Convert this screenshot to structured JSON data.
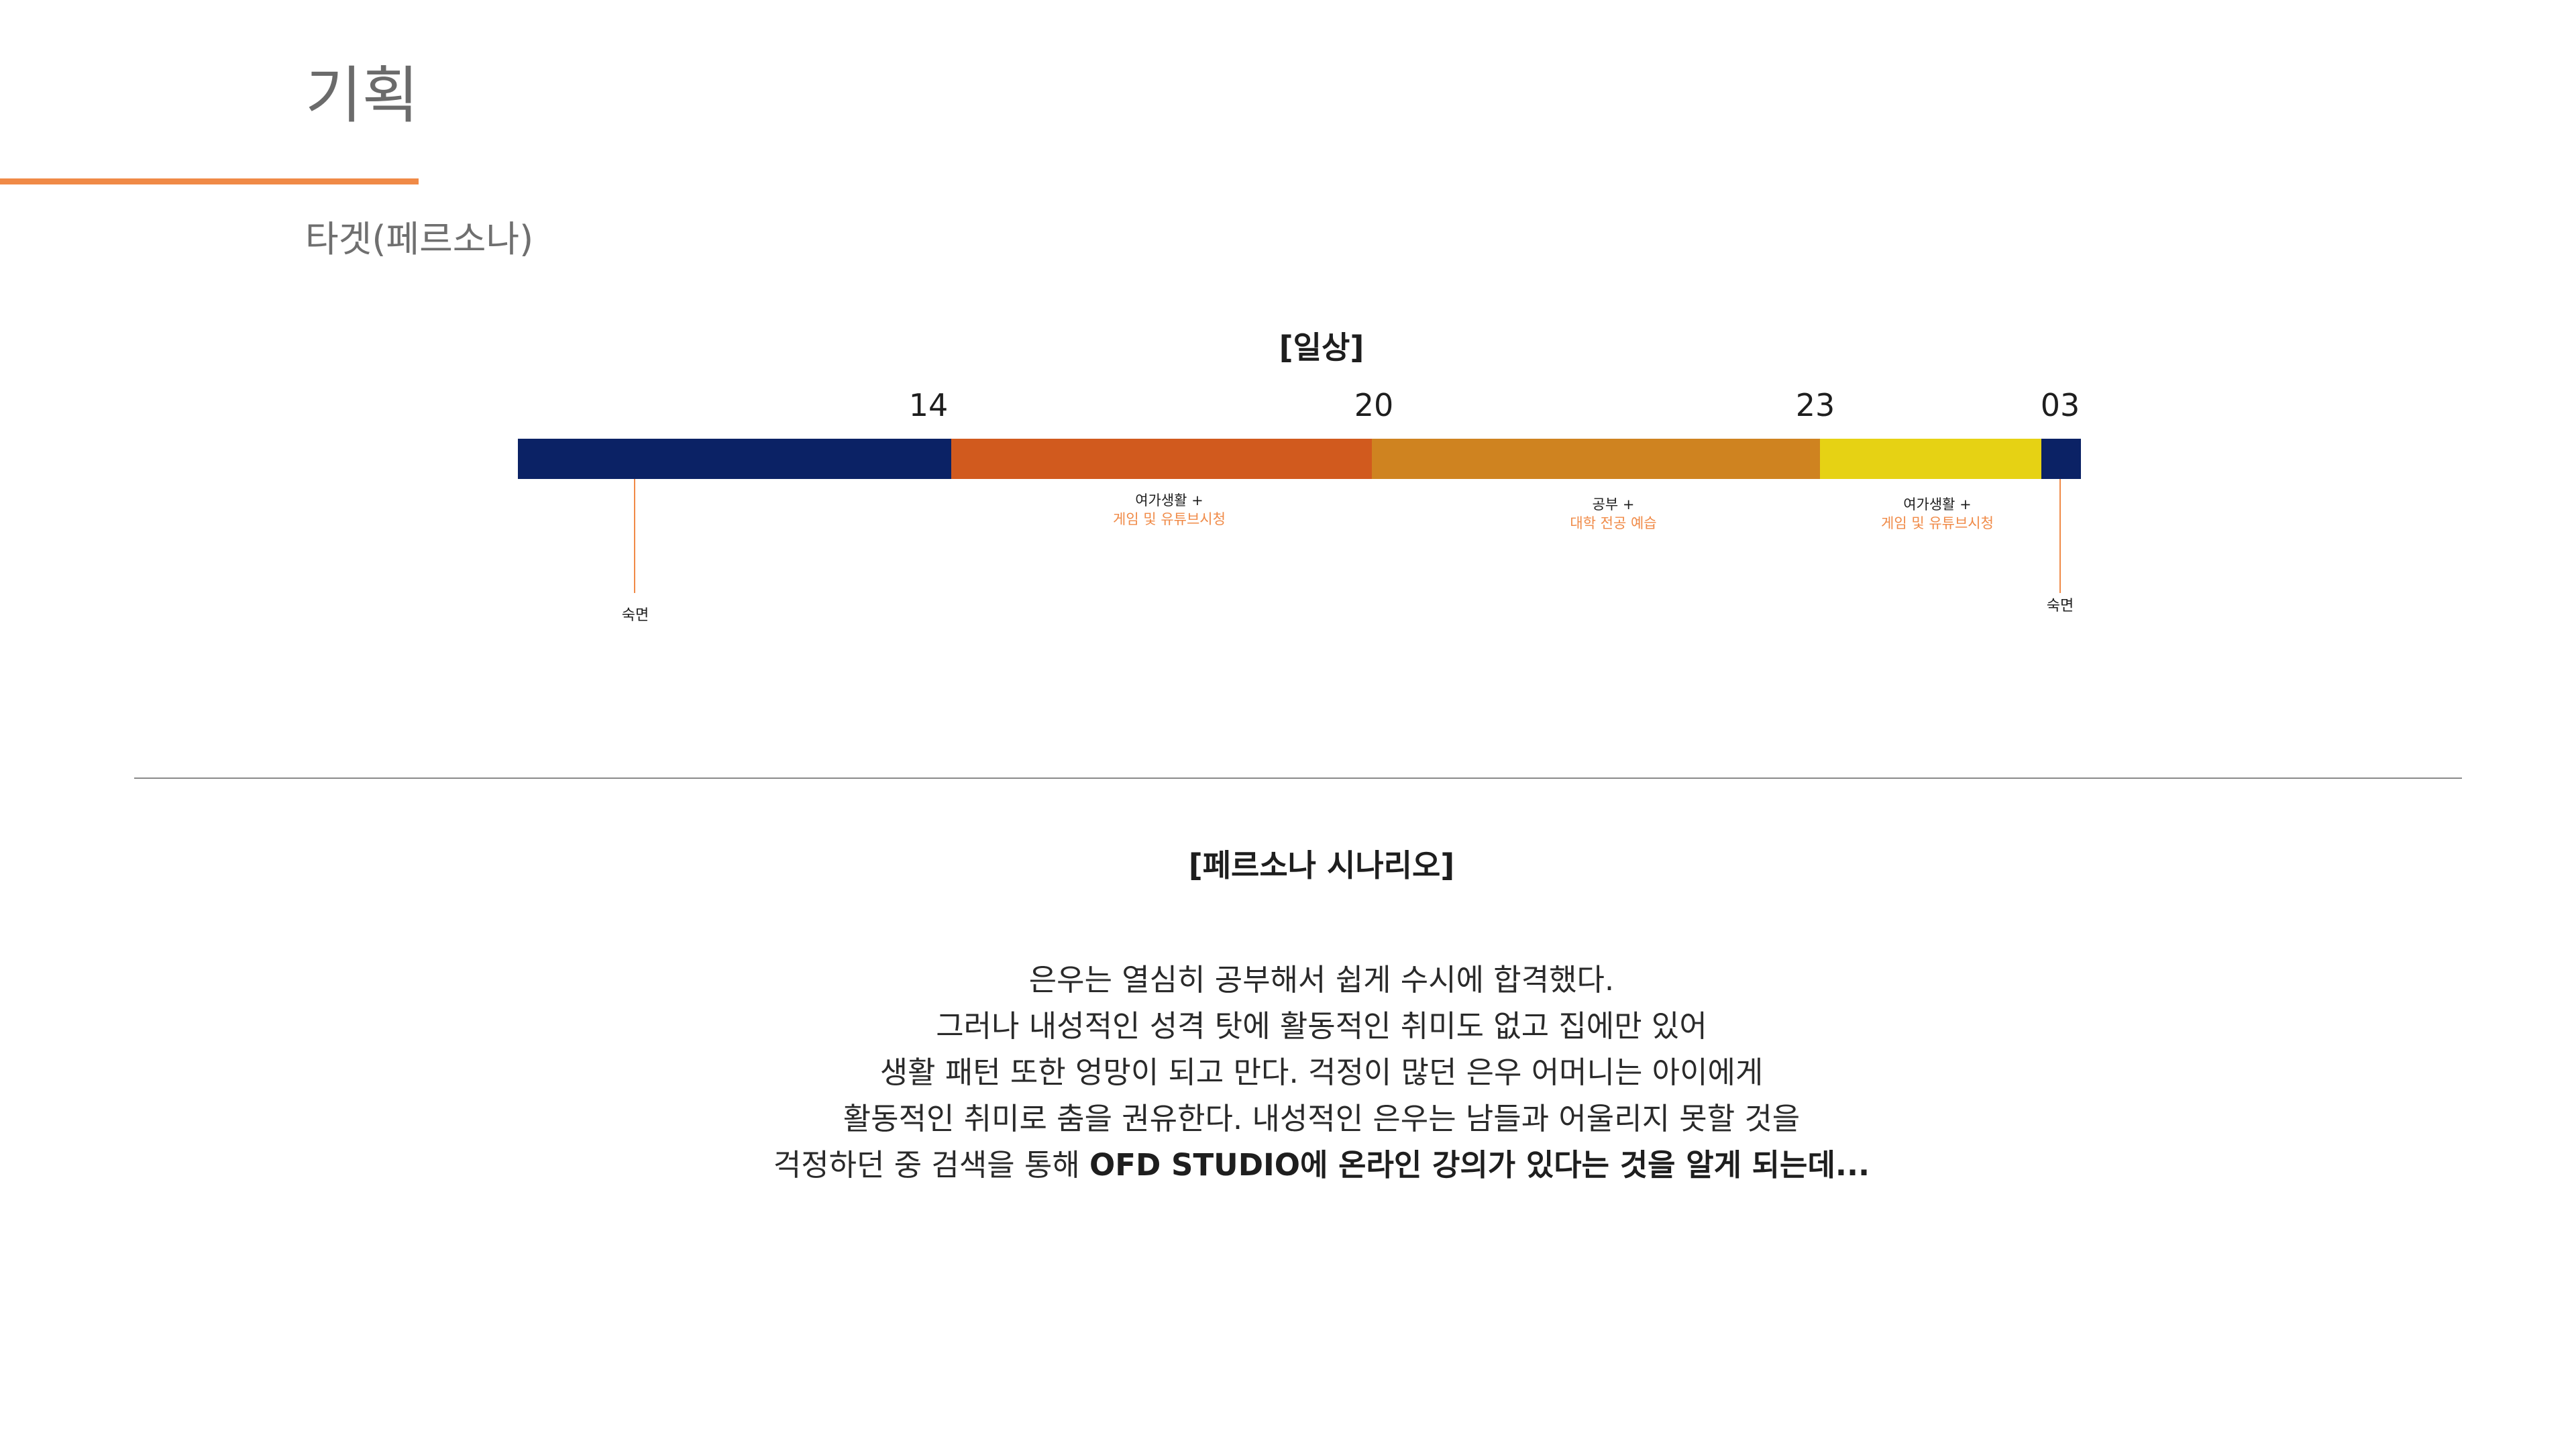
{
  "header": {
    "title": "기획",
    "subtitle": "타겟(페르소나)",
    "accent_color": "#f08a47"
  },
  "timeline": {
    "heading": "[일상]",
    "hour_labels": [
      "14",
      "20",
      "23",
      "03"
    ],
    "segments": [
      {
        "name": "숙면",
        "color": "#0b2265"
      },
      {
        "name": "여가생활 + 게임 및 유튜브시청",
        "color": "#d15a1e"
      },
      {
        "name": "공부 + 대학 전공 예습",
        "color": "#cf8320"
      },
      {
        "name": "여가생활 + 게임 및 유튜브시청",
        "color": "#e6d214"
      },
      {
        "name": "숙면",
        "color": "#0b2265"
      }
    ],
    "sleep_labels": [
      "숙면",
      "숙면"
    ],
    "activities": [
      {
        "main": "여가생활 +",
        "sub": "게임 및 유튜브시청"
      },
      {
        "main": "공부 +",
        "sub": "대학 전공 예습"
      },
      {
        "main": "여가생활 +",
        "sub": "게임 및 유튜브시청"
      }
    ]
  },
  "scenario": {
    "heading": "[페르소나 시나리오]",
    "lines": [
      "은우는 열심히 공부해서 쉽게 수시에 합격했다.",
      "그러나 내성적인 성격 탓에 활동적인 취미도 없고 집에만 있어",
      "생활 패턴 또한 엉망이 되고 만다. 걱정이 많던 은우 어머니는 아이에게",
      "활동적인 취미로 춤을 권유한다. 내성적인 은우는 남들과 어울리지 못할 것을"
    ],
    "last_line_plain": "걱정하던 중 검색을 통해 ",
    "last_line_bold": "OFD STUDIO에 온라인 강의가 있다는 것을 알게 되는데..."
  }
}
